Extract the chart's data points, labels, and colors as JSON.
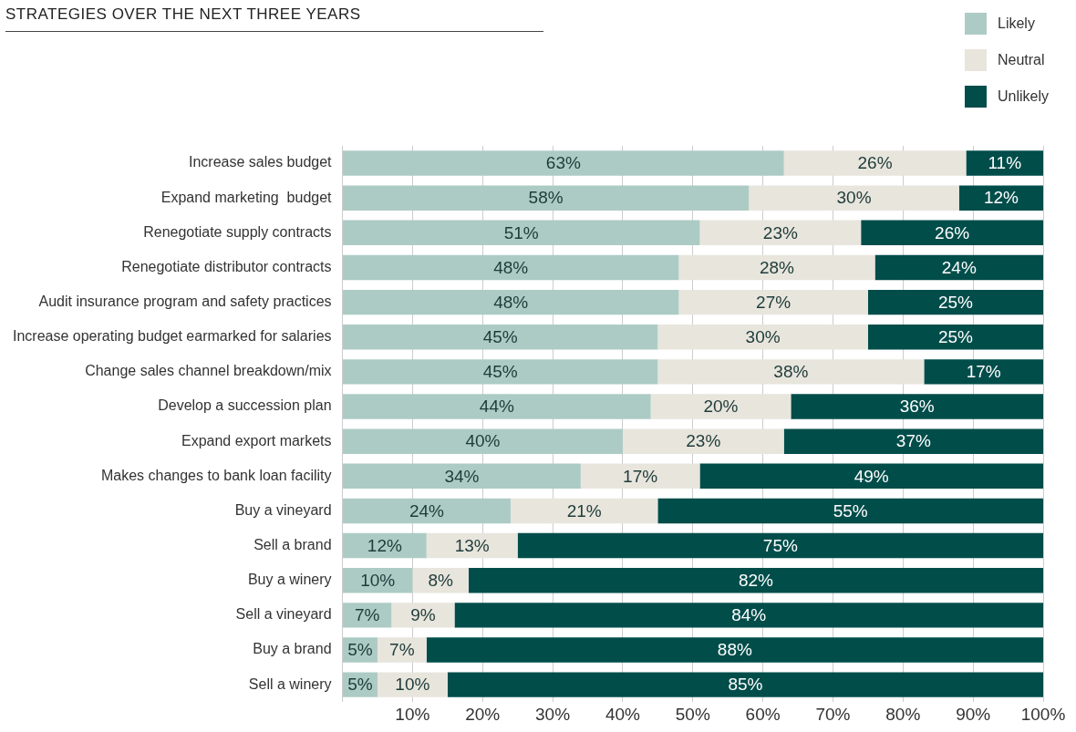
{
  "chart_data": {
    "type": "bar",
    "orientation": "horizontal",
    "stacked": true,
    "title": "STRATEGIES OVER THE NEXT THREE YEARS",
    "categories": [
      "Increase sales budget",
      "Expand marketing  budget",
      "Renegotiate supply contracts",
      "Renegotiate distributor contracts",
      "Audit insurance program and safety practices",
      "Increase operating budget earmarked for salaries",
      "Change sales channel breakdown/mix",
      "Develop a succession plan",
      "Expand export markets",
      "Makes changes to bank loan facility",
      "Buy a vineyard",
      "Sell a brand",
      "Buy a winery",
      "Sell a vineyard",
      "Buy a brand",
      "Sell a winery"
    ],
    "series": [
      {
        "name": "Likely",
        "color": "#adcbc5",
        "values": [
          63,
          58,
          51,
          48,
          48,
          45,
          45,
          44,
          40,
          34,
          24,
          12,
          10,
          7,
          5,
          5
        ],
        "value_labels": [
          "63%",
          "58%",
          "51%",
          "48%",
          "48%",
          "45%",
          "45%",
          "44%",
          "40%",
          "34%",
          "24%",
          "12%",
          "10%",
          "7%",
          "5%",
          "5%"
        ]
      },
      {
        "name": "Neutral",
        "color": "#e8e5dd",
        "values": [
          26,
          30,
          23,
          28,
          27,
          30,
          38,
          20,
          23,
          17,
          21,
          13,
          8,
          9,
          7,
          10
        ],
        "value_labels": [
          "26%",
          "30%",
          "23%",
          "28%",
          "27%",
          "30%",
          "38%",
          "20%",
          "23%",
          "17%",
          "21%",
          "13%",
          "8%",
          "9%",
          "7%",
          "10%"
        ]
      },
      {
        "name": "Unlikely",
        "color": "#004d4a",
        "values": [
          11,
          12,
          26,
          24,
          25,
          25,
          17,
          36,
          37,
          49,
          55,
          75,
          82,
          84,
          88,
          85
        ],
        "value_labels": [
          "11%",
          "12%",
          "26%",
          "24%",
          "25%",
          "25%",
          "17%",
          "36%",
          "37%",
          "49%",
          "55%",
          "75%",
          "82%",
          "84%",
          "88%",
          "85%"
        ]
      }
    ],
    "xlim": [
      0,
      100
    ],
    "xticks": [
      {
        "value": 0,
        "label": null
      },
      {
        "value": 10,
        "label": "10%"
      },
      {
        "value": 20,
        "label": "20%"
      },
      {
        "value": 30,
        "label": "30%"
      },
      {
        "value": 40,
        "label": "40%"
      },
      {
        "value": 50,
        "label": "50%"
      },
      {
        "value": 60,
        "label": "60%"
      },
      {
        "value": 70,
        "label": "70%"
      },
      {
        "value": 80,
        "label": "80%"
      },
      {
        "value": 90,
        "label": "90%"
      },
      {
        "value": 100,
        "label": "100%"
      }
    ],
    "grid": "x",
    "legend": "top right"
  }
}
